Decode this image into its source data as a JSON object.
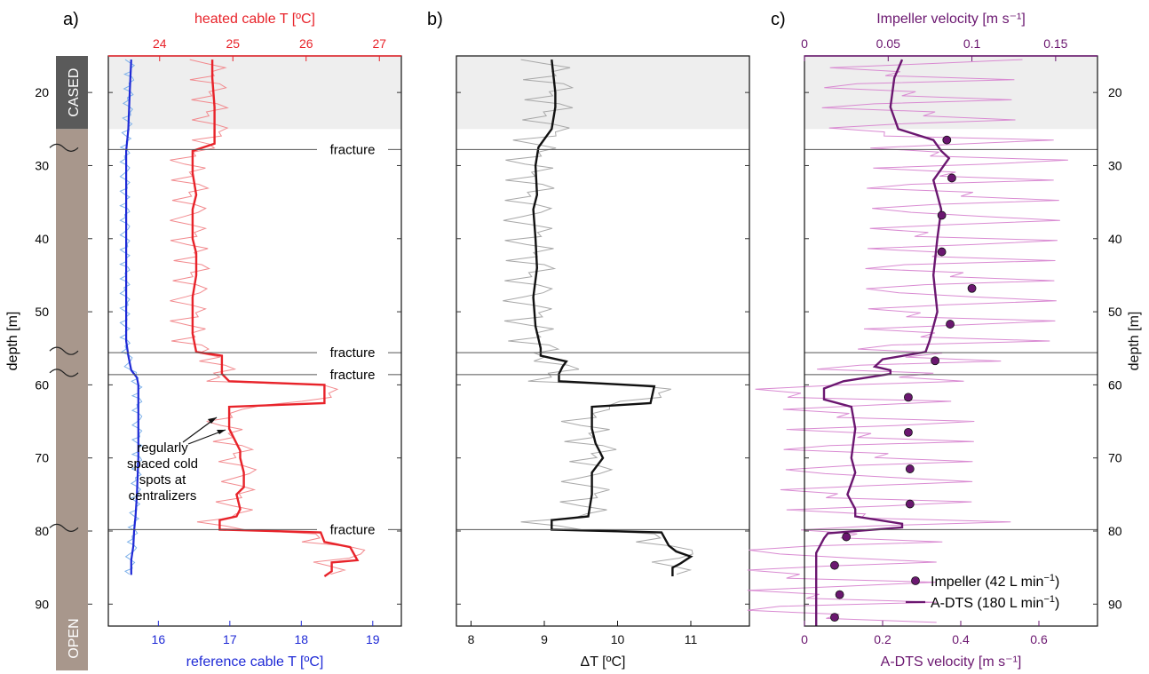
{
  "colors": {
    "red": "#e8232a",
    "red_light": "#f28a8e",
    "blue": "#1f2ad6",
    "blue_light": "#7fb2ea",
    "black": "#111111",
    "gray": "#a8a8a8",
    "purple": "#6b1770",
    "purple_light": "#d98ad2",
    "cased_fill": "#5a5a5a",
    "open_fill": "#a8978c",
    "shade": "#eeeeee"
  },
  "chart_data": [
    {
      "type": "line",
      "panel": "a)",
      "y_axis": {
        "label": "depth [m]",
        "range": [
          15,
          93
        ],
        "ticks": [
          20,
          30,
          40,
          50,
          60,
          70,
          80,
          90
        ]
      },
      "x_axis_top": {
        "label": "heated cable T [ºC]",
        "range": [
          23.3,
          27.3
        ],
        "ticks": [
          24,
          25,
          26,
          27
        ]
      },
      "x_axis_bottom": {
        "label": "reference cable T [ºC]",
        "range": [
          15.3,
          19.4
        ],
        "ticks": [
          16,
          17,
          18,
          19
        ]
      },
      "column": {
        "cased_label": "CASED",
        "open_label": "OPEN",
        "cased_range": [
          15,
          25
        ]
      },
      "cased_shading": [
        15,
        25
      ],
      "fractures": [
        {
          "depth": 27.8,
          "label": "fracture"
        },
        {
          "depth": 55.6,
          "label": "fracture"
        },
        {
          "depth": 58.6,
          "label": "fracture"
        },
        {
          "depth": 79.8,
          "label": "fracture"
        }
      ],
      "annotation": [
        "regularly",
        "spaced cold",
        "spots at",
        "centralizers"
      ],
      "series": [
        {
          "axis": "top",
          "style": "smoothed",
          "x": [
            24.72,
            24.72,
            24.75,
            24.75,
            24.75,
            24.45,
            24.45,
            24.5,
            24.45,
            24.45,
            24.5,
            24.5,
            24.45,
            24.45,
            24.45,
            24.5,
            24.85,
            24.85,
            24.95,
            26.25,
            26.25,
            24.95,
            24.95,
            25.1,
            25.1,
            25.15,
            25.15,
            25.05,
            25.1,
            25.05,
            24.82,
            24.82,
            26.2,
            26.25,
            26.6,
            26.7,
            26.35,
            26.35,
            26.25
          ],
          "y": [
            15.5,
            18,
            22,
            25,
            27,
            28,
            31,
            34,
            36,
            40,
            42,
            45,
            48,
            50,
            53,
            55.5,
            56,
            58.5,
            59.5,
            60,
            62.5,
            63,
            66,
            69,
            70,
            72,
            74,
            75,
            77,
            78,
            78.5,
            79.8,
            80.2,
            81.5,
            82.2,
            84,
            84.3,
            85.5,
            86.2
          ]
        },
        {
          "axis": "bottom",
          "style": "smoothed",
          "x": [
            15.62,
            15.6,
            15.58,
            15.55,
            15.55,
            15.55,
            15.55,
            15.55,
            15.55,
            15.55,
            15.55,
            15.58,
            15.62,
            15.7,
            15.72,
            15.72,
            15.72,
            15.7,
            15.68,
            15.66,
            15.65,
            15.62,
            15.62
          ],
          "y": [
            15.5,
            20,
            25,
            28,
            32,
            36,
            40,
            44,
            48,
            52,
            54,
            56,
            58,
            59,
            60,
            65,
            70,
            75,
            78,
            80,
            82,
            84,
            86
          ]
        }
      ]
    },
    {
      "type": "line",
      "panel": "b)",
      "x_axis": {
        "label": "ΔT [ºC]",
        "range": [
          7.8,
          11.8
        ],
        "ticks": [
          8,
          9,
          10,
          11
        ]
      },
      "y_axis": {
        "range": [
          15,
          93
        ]
      },
      "cased_shading": [
        15,
        25
      ],
      "fractures": [
        27.8,
        55.6,
        58.6,
        79.8
      ],
      "series": [
        {
          "style": "smoothed",
          "x": [
            9.1,
            9.15,
            9.15,
            9.1,
            8.92,
            8.88,
            8.9,
            8.85,
            8.88,
            8.9,
            8.85,
            8.88,
            8.95,
            8.95,
            9.3,
            9.25,
            9.2,
            9.2,
            10.5,
            10.45,
            9.65,
            9.65,
            9.7,
            9.8,
            9.65,
            9.65,
            9.6,
            9.1,
            9.1,
            10.6,
            10.7,
            10.8,
            11.0,
            10.85,
            10.75,
            10.75
          ],
          "y": [
            15.5,
            20,
            22,
            25,
            27.5,
            30,
            34,
            36,
            40,
            44,
            48,
            52,
            55,
            56,
            56.8,
            57.5,
            58.5,
            59.5,
            60.2,
            62.5,
            63,
            66,
            68,
            70,
            72,
            75,
            78,
            78.5,
            79.8,
            80.2,
            82,
            82.8,
            83.5,
            84.5,
            85,
            86.2
          ]
        }
      ]
    },
    {
      "type": "line",
      "panel": "c)",
      "x_axis_top": {
        "label": "Impeller velocity [m s⁻¹]",
        "range": [
          0,
          0.175
        ],
        "ticks": [
          0,
          0.05,
          0.1,
          0.15
        ],
        "tick_labels": [
          "0",
          "0.05",
          "0.1",
          "0.15"
        ]
      },
      "x_axis_bottom": {
        "label": "A-DTS velocity [m s⁻¹]",
        "range": [
          0,
          0.75
        ],
        "ticks": [
          0,
          0.2,
          0.4,
          0.6
        ],
        "tick_labels": [
          "0",
          "0.2",
          "0.4",
          "0.6"
        ]
      },
      "y_axis_right": {
        "label": "depth [m]",
        "range": [
          15,
          93
        ],
        "ticks": [
          20,
          30,
          40,
          50,
          60,
          70,
          80,
          90
        ]
      },
      "cased_shading": [
        15,
        25
      ],
      "fractures": [
        27.8,
        55.6,
        58.6,
        79.8
      ],
      "legend": {
        "position": "bottom-right",
        "entries": [
          {
            "label": "Impeller (42 L min",
            "sup": "−1",
            "tail": ")"
          },
          {
            "label": "A-DTS (180 L min",
            "sup": "−1",
            "tail": ")"
          }
        ]
      },
      "series": [
        {
          "name": "Impeller (42 L min⁻¹)",
          "axis": "top",
          "style": "points",
          "x": [
            0.085,
            0.088,
            0.082,
            0.082,
            0.1,
            0.087,
            0.078,
            0.062,
            0.062,
            0.063,
            0.063,
            0.025,
            0.018,
            0.021,
            0.018
          ],
          "y": [
            26.5,
            31.7,
            36.8,
            41.8,
            46.8,
            51.7,
            56.7,
            61.7,
            66.5,
            71.5,
            76.3,
            80.8,
            84.7,
            88.7,
            91.8
          ]
        },
        {
          "name": "A-DTS (180 L min⁻¹)",
          "axis": "bottom",
          "style": "smoothed",
          "x": [
            0.25,
            0.23,
            0.22,
            0.24,
            0.33,
            0.35,
            0.37,
            0.33,
            0.35,
            0.34,
            0.33,
            0.34,
            0.32,
            0.31,
            0.2,
            0.18,
            0.22,
            0.22,
            0.1,
            0.05,
            0.05,
            0.12,
            0.13,
            0.12,
            0.13,
            0.11,
            0.13,
            0.13,
            0.25,
            0.25,
            0.06,
            0.05,
            0.03,
            0.03,
            0.03,
            0.03
          ],
          "y": [
            15.5,
            18,
            22,
            25,
            26.5,
            28,
            29,
            32,
            36,
            40,
            45,
            50,
            54,
            55.5,
            56.5,
            57.5,
            58,
            58.5,
            59.5,
            60.5,
            62,
            63,
            66,
            70,
            72,
            75,
            77,
            78,
            79,
            79.5,
            80.3,
            81,
            83,
            86,
            89,
            93
          ]
        }
      ]
    }
  ]
}
